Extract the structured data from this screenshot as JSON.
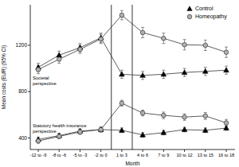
{
  "chart_data": {
    "type": "line",
    "x_label": "Month",
    "y_label": "Mean costs (EUR) (95% CI)",
    "categories": [
      "-12 to -9",
      "-8 to -6",
      "-5 to -3",
      "-2 to 0",
      "1 to 3",
      "4 to 6",
      "7 to 9",
      "10 to 12",
      "13 to 15",
      "16 to 18"
    ],
    "ylim": [
      300,
      1550
    ],
    "yticks": [
      400,
      800,
      1200
    ],
    "grid": false,
    "legend": "upper right",
    "reference_lines_x": [
      3.5,
      4.5
    ],
    "annotations": [
      {
        "lines": [
          "Societal",
          "perspective"
        ]
      },
      {
        "lines": [
          "Statutory health insurance",
          "perspective"
        ]
      }
    ],
    "series": [
      {
        "name": "Control",
        "color": "#000000",
        "marker": "triangle",
        "values": [
          1010,
          1115,
          1180,
          1265,
          950,
          940,
          950,
          965,
          975,
          985
        ],
        "errors": [
          35,
          35,
          35,
          40,
          35,
          35,
          35,
          35,
          35,
          35
        ]
      },
      {
        "name": "Homeopathy",
        "color": "#b0b0b0",
        "marker": "circle",
        "values": [
          990,
          1080,
          1165,
          1255,
          1460,
          1310,
          1260,
          1205,
          1200,
          1140
        ],
        "errors": [
          35,
          35,
          35,
          40,
          40,
          45,
          45,
          45,
          45,
          45
        ]
      },
      {
        "color": "#000000",
        "marker": "triangle",
        "values": [
          387,
          420,
          459,
          472,
          466,
          426,
          446,
          472,
          466,
          485
        ],
        "errors": [
          20,
          20,
          20,
          20,
          20,
          20,
          20,
          20,
          20,
          20
        ]
      },
      {
        "color": "#b0b0b0",
        "marker": "circle",
        "values": [
          374,
          413,
          452,
          472,
          700,
          615,
          595,
          580,
          590,
          530
        ],
        "errors": [
          20,
          20,
          22,
          22,
          25,
          25,
          28,
          28,
          30,
          30
        ]
      }
    ]
  }
}
